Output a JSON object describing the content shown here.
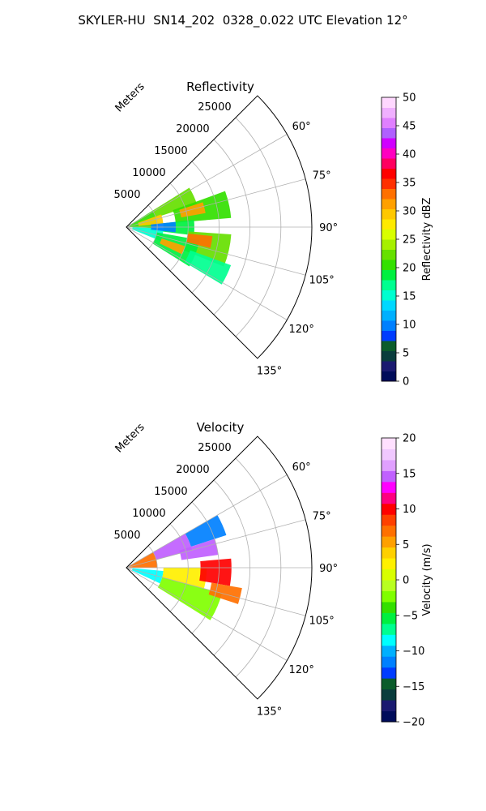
{
  "figure": {
    "title": "SKYLER-HU  SN14_202  0328_0.022 UTC Elevation 12°"
  },
  "chart_data": [
    {
      "type": "heatmap",
      "subtype": "polar-sector",
      "title": "Reflectivity",
      "radial_label": "Meters",
      "radial_ticks": [
        "5000",
        "10000",
        "15000",
        "20000",
        "25000"
      ],
      "r_range": [
        0,
        30000
      ],
      "angle_range_deg": [
        45,
        135
      ],
      "angle_ticks": [
        "60°",
        "75°",
        "90°",
        "105°",
        "120°",
        "135°"
      ],
      "grid": true,
      "colorbar": {
        "label": "Reflectivity dBZ",
        "range": [
          0,
          50
        ],
        "ticks": [
          "0",
          "5",
          "10",
          "15",
          "20",
          "25",
          "30",
          "35",
          "40",
          "45",
          "50"
        ]
      },
      "field_regions": [
        {
          "r": [
            500,
            5000
          ],
          "az": [
            58,
            92
          ],
          "value": 20
        },
        {
          "r": [
            1000,
            6000
          ],
          "az": [
            92,
            112
          ],
          "value": 15
        },
        {
          "r": [
            5000,
            12000
          ],
          "az": [
            58,
            72
          ],
          "value": 22
        },
        {
          "r": [
            8000,
            17000
          ],
          "az": [
            70,
            85
          ],
          "value": 20
        },
        {
          "r": [
            6000,
            11000
          ],
          "az": [
            84,
            97
          ],
          "value": 18
        },
        {
          "r": [
            10000,
            17000
          ],
          "az": [
            94,
            112
          ],
          "value": 22
        },
        {
          "r": [
            5000,
            12000
          ],
          "az": [
            100,
            122
          ],
          "value": 18
        },
        {
          "r": [
            11000,
            18000
          ],
          "az": [
            110,
            121
          ],
          "value": 17
        },
        {
          "r": [
            2000,
            6000
          ],
          "az": [
            70,
            85
          ],
          "value": 30
        },
        {
          "r": [
            9000,
            13000
          ],
          "az": [
            72,
            80
          ],
          "value": 32
        },
        {
          "r": [
            10000,
            14000
          ],
          "az": [
            96,
            104
          ],
          "value": 33
        },
        {
          "r": [
            6000,
            10000
          ],
          "az": [
            108,
            116
          ],
          "value": 31
        },
        {
          "r": [
            4000,
            8000
          ],
          "az": [
            84,
            96
          ],
          "value": 10
        }
      ]
    },
    {
      "type": "heatmap",
      "subtype": "polar-sector",
      "title": "Velocity",
      "radial_label": "Meters",
      "radial_ticks": [
        "5000",
        "10000",
        "15000",
        "20000",
        "25000"
      ],
      "r_range": [
        0,
        30000
      ],
      "angle_range_deg": [
        45,
        135
      ],
      "angle_ticks": [
        "60°",
        "75°",
        "90°",
        "105°",
        "120°",
        "135°"
      ],
      "grid": true,
      "colorbar": {
        "label": "Velocity (m/s)",
        "range": [
          -20,
          20
        ],
        "ticks": [
          "−20",
          "−15",
          "−10",
          "−5",
          "0",
          "5",
          "10",
          "15",
          "20"
        ]
      },
      "field_regions": [
        {
          "r": [
            500,
            5000
          ],
          "az": [
            60,
            90
          ],
          "value": 7
        },
        {
          "r": [
            5000,
            11000
          ],
          "az": [
            60,
            75
          ],
          "value": 15
        },
        {
          "r": [
            11000,
            17000
          ],
          "az": [
            60,
            72
          ],
          "value": -11
        },
        {
          "r": [
            9000,
            15000
          ],
          "az": [
            72,
            82
          ],
          "value": 15
        },
        {
          "r": [
            6000,
            13000
          ],
          "az": [
            90,
            105
          ],
          "value": 2
        },
        {
          "r": [
            12000,
            17000
          ],
          "az": [
            85,
            100
          ],
          "value": 10
        },
        {
          "r": [
            1000,
            6000
          ],
          "az": [
            95,
            115
          ],
          "value": -9
        },
        {
          "r": [
            6000,
            16000
          ],
          "az": [
            105,
            122
          ],
          "value": -3
        },
        {
          "r": [
            14000,
            19000
          ],
          "az": [
            100,
            108
          ],
          "value": 7
        }
      ]
    }
  ]
}
